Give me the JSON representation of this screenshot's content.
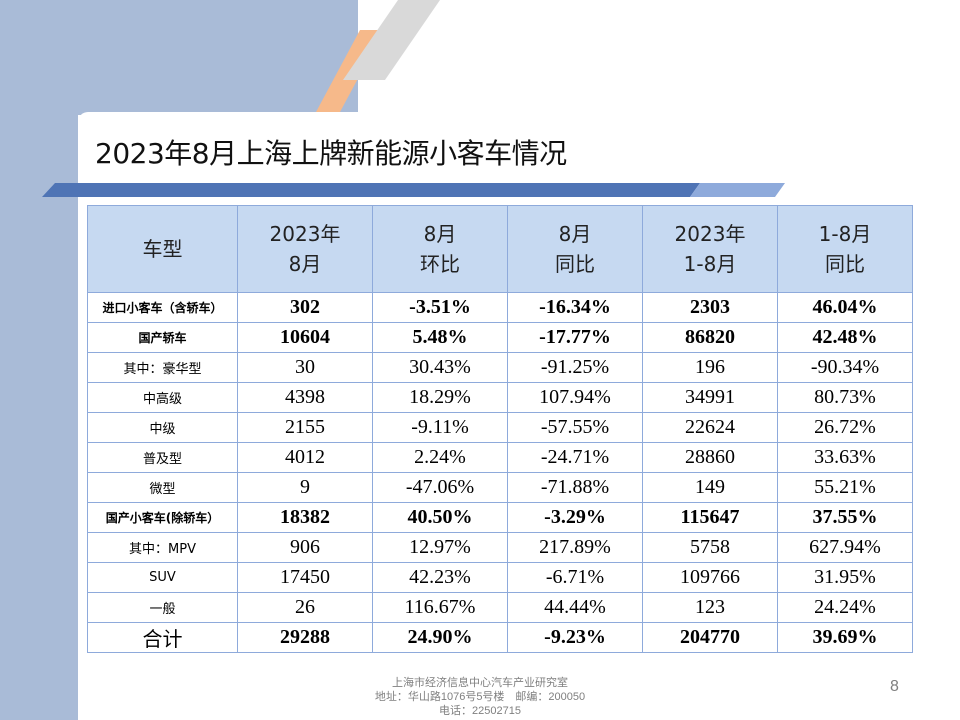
{
  "title": "2023年8月上海上牌新能源小客车情况",
  "colors": {
    "band": "#a9bbd7",
    "stripe_orange": "#f6b98a",
    "stripe_grey": "#d9d9d9",
    "rule_blue": "#4f74b5",
    "header_fill": "#c6d9f1",
    "grid": "#8eaadb"
  },
  "table": {
    "headers": [
      {
        "line1": "车型",
        "line2": ""
      },
      {
        "line1": "2023年",
        "line2": "8月"
      },
      {
        "line1": "8月",
        "line2": "环比"
      },
      {
        "line1": "8月",
        "line2": "同比"
      },
      {
        "line1": "2023年",
        "line2": "1-8月"
      },
      {
        "line1": "1-8月",
        "line2": "同比"
      }
    ],
    "rows": [
      {
        "label": "进口小客车（含轿车）",
        "c1": "302",
        "c2": "-3.51%",
        "c3": "-16.34%",
        "c4": "2303",
        "c5": "46.04%"
      },
      {
        "label": "国产轿车",
        "c1": "10604",
        "c2": "5.48%",
        "c3": "-17.77%",
        "c4": "86820",
        "c5": "42.48%"
      },
      {
        "label": "其中：豪华型",
        "c1": "30",
        "c2": "30.43%",
        "c3": "-91.25%",
        "c4": "196",
        "c5": "-90.34%"
      },
      {
        "label": "中高级",
        "c1": "4398",
        "c2": "18.29%",
        "c3": "107.94%",
        "c4": "34991",
        "c5": "80.73%"
      },
      {
        "label": "中级",
        "c1": "2155",
        "c2": "-9.11%",
        "c3": "-57.55%",
        "c4": "22624",
        "c5": "26.72%"
      },
      {
        "label": "普及型",
        "c1": "4012",
        "c2": "2.24%",
        "c3": "-24.71%",
        "c4": "28860",
        "c5": "33.63%"
      },
      {
        "label": "微型",
        "c1": "9",
        "c2": "-47.06%",
        "c3": "-71.88%",
        "c4": "149",
        "c5": "55.21%"
      },
      {
        "label": "国产小客车(除轿车）",
        "c1": "18382",
        "c2": "40.50%",
        "c3": "-3.29%",
        "c4": "115647",
        "c5": "37.55%"
      },
      {
        "label": "其中：MPV",
        "c1": "906",
        "c2": "12.97%",
        "c3": "217.89%",
        "c4": "5758",
        "c5": "627.94%"
      },
      {
        "label": "SUV",
        "c1": "17450",
        "c2": "42.23%",
        "c3": "-6.71%",
        "c4": "109766",
        "c5": "31.95%"
      },
      {
        "label": "一般",
        "c1": "26",
        "c2": "116.67%",
        "c3": "44.44%",
        "c4": "123",
        "c5": "24.24%"
      },
      {
        "label": "合计",
        "c1": "29288",
        "c2": "24.90%",
        "c3": "-9.23%",
        "c4": "204770",
        "c5": "39.69%"
      }
    ]
  },
  "footer": {
    "line1": "上海市经济信息中心汽车产业研究室",
    "line2": "地址：华山路1076号5号楼　邮编：200050",
    "line3": "电话：22502715"
  },
  "page_number": "8"
}
